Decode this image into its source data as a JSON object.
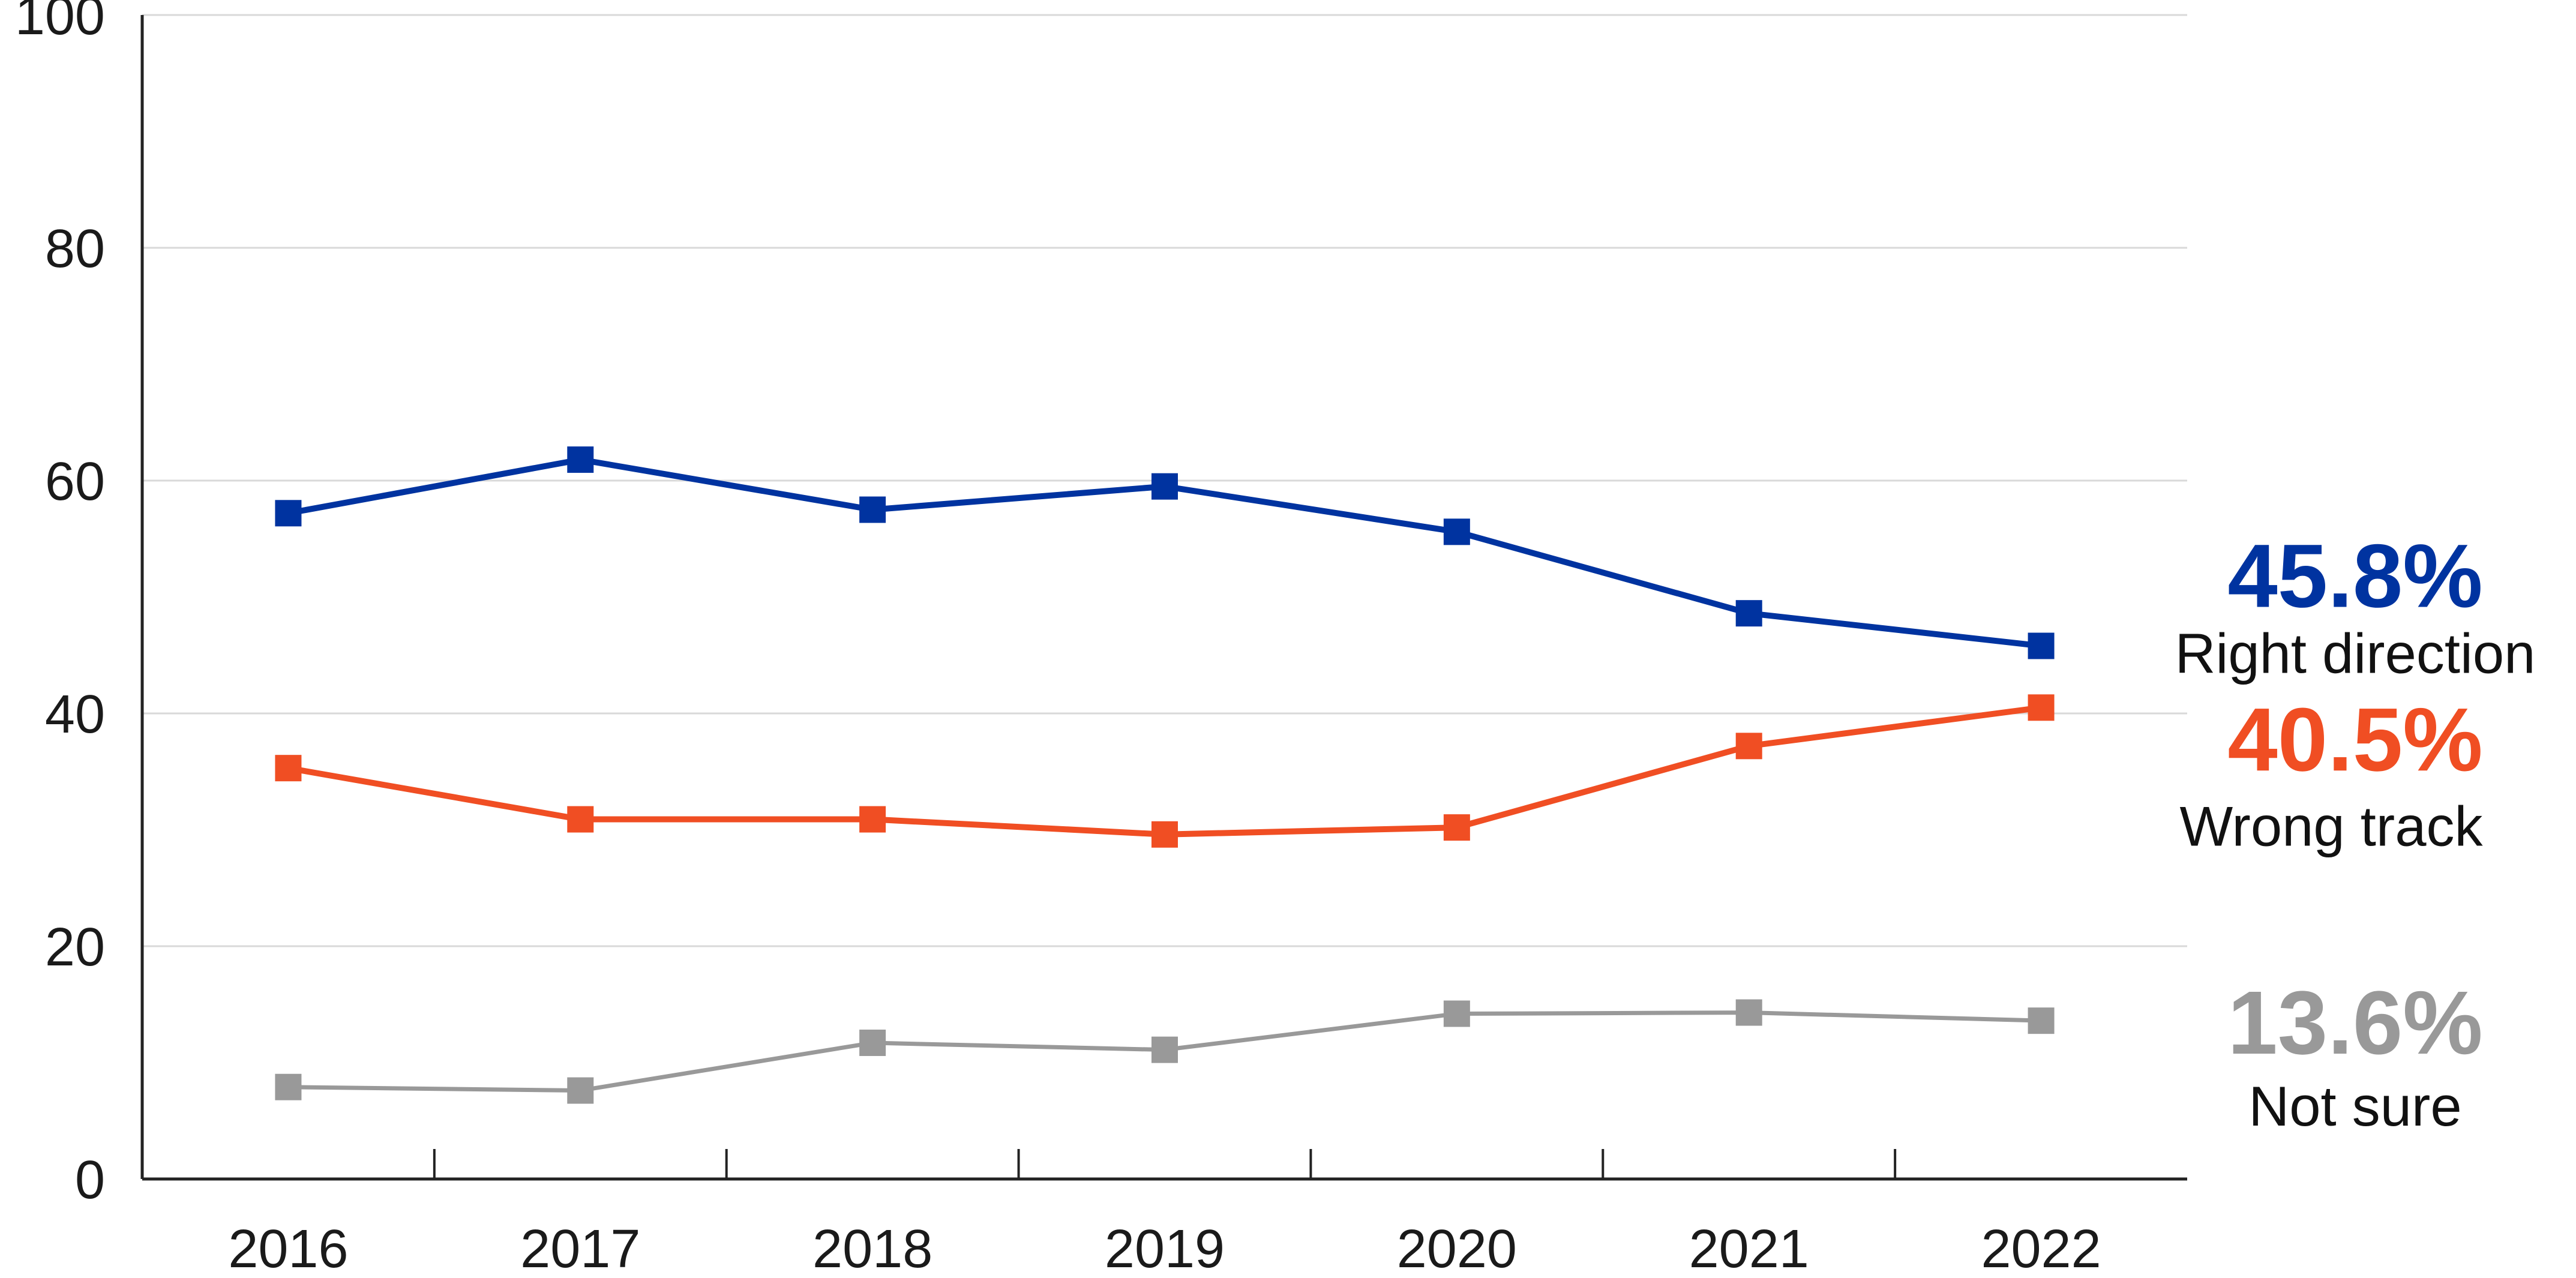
{
  "chart_data": {
    "type": "line",
    "title": "",
    "xlabel": "",
    "ylabel": "",
    "x": [
      "2016",
      "2017",
      "2018",
      "2019",
      "2020",
      "2021",
      "2022"
    ],
    "ylim": [
      0,
      100
    ],
    "yticks": [
      "0",
      "20",
      "40",
      "60",
      "80",
      "100"
    ],
    "grid": "horizontal",
    "legend": "end-labels-right",
    "series": [
      {
        "name": "Right direction",
        "end_label": "45.8%",
        "color": "#0033A0",
        "values": [
          57.2,
          61.8,
          57.5,
          59.5,
          55.6,
          48.6,
          45.8
        ]
      },
      {
        "name": "Wrong track",
        "end_label": "40.5%",
        "color": "#F04E23",
        "values": [
          35.3,
          30.9,
          30.9,
          29.6,
          30.2,
          37.2,
          40.5
        ]
      },
      {
        "name": "Not sure",
        "end_label": "13.6%",
        "color": "#999999",
        "values": [
          7.9,
          7.6,
          11.7,
          11.1,
          14.2,
          14.3,
          13.6
        ]
      }
    ]
  }
}
